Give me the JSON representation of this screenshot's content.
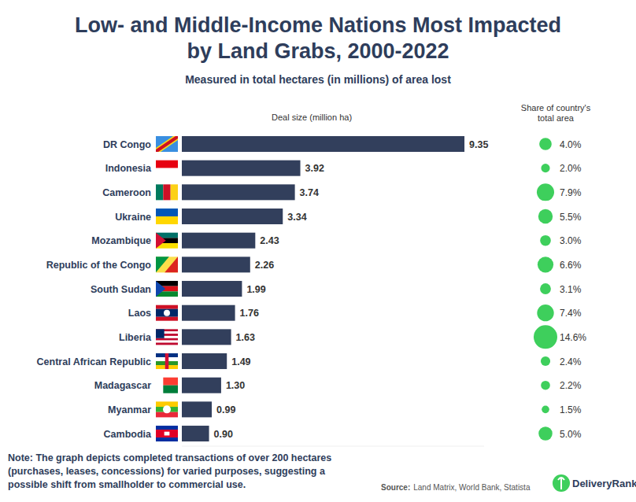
{
  "chart_data": {
    "type": "bar",
    "orientation": "horizontal",
    "title": "Low- and Middle-Income Nations Most Impacted\nby Land Grabs, 2000-2022",
    "subtitle": "Measured in total hectares (in millions) of area lost",
    "x_label": "Deal size (million ha)",
    "categories": [
      "DR Congo",
      "Indonesia",
      "Cameroon",
      "Ukraine",
      "Mozambique",
      "Republic of the Congo",
      "South Sudan",
      "Laos",
      "Liberia",
      "Central African Republic",
      "Madagascar",
      "Myanmar",
      "Cambodia"
    ],
    "values": [
      9.35,
      3.92,
      3.74,
      3.34,
      2.43,
      2.26,
      1.99,
      1.76,
      1.63,
      1.49,
      1.3,
      0.99,
      0.9
    ],
    "value_labels": [
      "9.35",
      "3.92",
      "3.74",
      "3.34",
      "2.43",
      "2.26",
      "1.99",
      "1.76",
      "1.63",
      "1.49",
      "1.30",
      "0.99",
      "0.90"
    ],
    "color": "#323f5c",
    "xlim": [
      0,
      10
    ],
    "tick_labels": false,
    "grid": false,
    "data_labels": true,
    "share_title": "Share of country's\ntotal area",
    "share_values": [
      4.0,
      2.0,
      7.9,
      5.5,
      3.0,
      6.6,
      3.1,
      7.4,
      14.6,
      2.4,
      2.2,
      1.5,
      5.0
    ],
    "share_labels": [
      "4.0%",
      "2.0%",
      "7.9%",
      "5.5%",
      "3.0%",
      "6.6%",
      "3.1%",
      "7.4%",
      "14.6%",
      "2.4%",
      "2.2%",
      "1.5%",
      "5.0%"
    ],
    "share_color": "#3ecf5c",
    "note": "Note: The graph depicts completed transactions of over 200 hectares\n(purchases, leases, concessions) for varied purposes, suggesting a\npossible shift from smallholder to commercial use.",
    "source_label": "Source:",
    "source": "Land Matrix, World Bank, Statista",
    "brand": "DeliveryRank"
  }
}
